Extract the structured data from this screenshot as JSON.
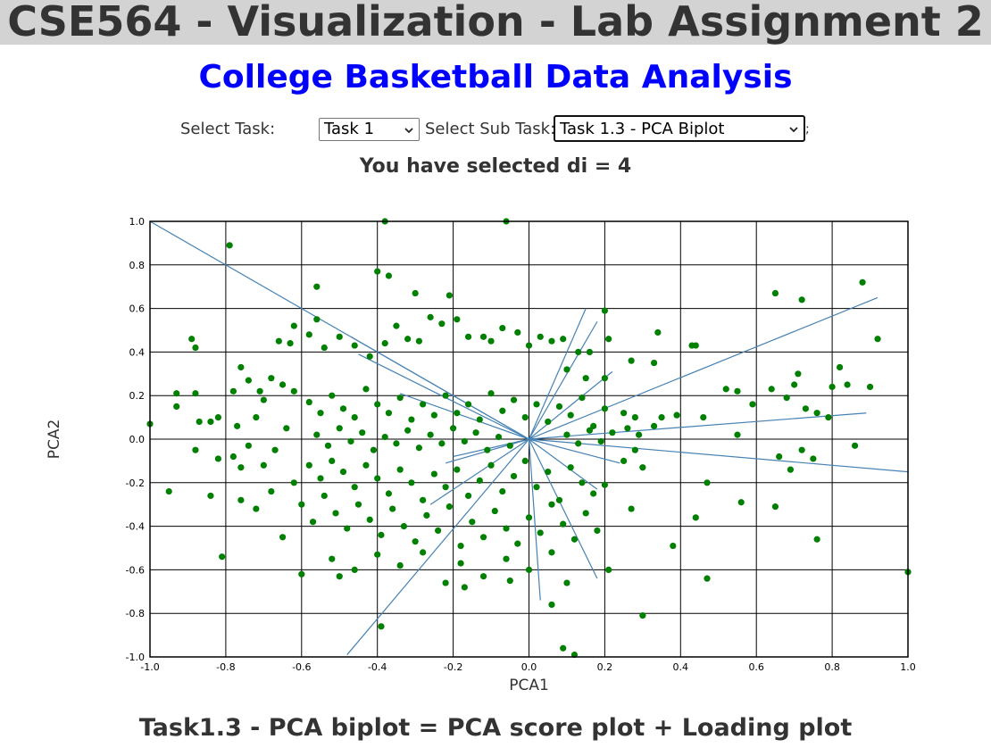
{
  "header": {
    "title": "CSE564 - Visualization - Lab Assignment 2",
    "subtitle": "College Basketball Data Analysis"
  },
  "controls": {
    "task_label": "Select Task:",
    "task_value": "Task 1",
    "subtask_label": "Select Sub Task:",
    "subtask_value": "Task 1.3 - PCA Biplot",
    "trailing": ";"
  },
  "status": {
    "selected_text": "You have selected di = 4"
  },
  "caption": "Task1.3 - PCA biplot = PCA score plot + Loading plot",
  "colors": {
    "point": "#008000",
    "loading": "#4682b4",
    "subtitle": "#0000ff",
    "banner": "#d3d3d3"
  },
  "chart_data": {
    "type": "scatter",
    "xlabel": "PCA1",
    "ylabel": "PCA2",
    "xlim": [
      -1.0,
      1.0
    ],
    "ylim": [
      -1.0,
      1.0
    ],
    "grid": true,
    "x_ticks": [
      "-1.0",
      "-0.8",
      "-0.6",
      "-0.4",
      "-0.2",
      "0.0",
      "0.2",
      "0.4",
      "0.6",
      "0.8",
      "1.0"
    ],
    "y_ticks": [
      "-1.0",
      "-0.8",
      "-0.6",
      "-0.4",
      "-0.2",
      "0.0",
      "0.2",
      "0.4",
      "0.6",
      "0.8",
      "1.0"
    ],
    "loadings": [
      [
        -1.0,
        1.0
      ],
      [
        -0.47,
        0.47
      ],
      [
        -0.45,
        0.39
      ],
      [
        -0.34,
        0.21
      ],
      [
        0.15,
        0.6
      ],
      [
        0.18,
        0.54
      ],
      [
        0.22,
        0.31
      ],
      [
        0.92,
        0.65
      ],
      [
        0.89,
        0.12
      ],
      [
        1.0,
        -0.15
      ],
      [
        0.24,
        -0.11
      ],
      [
        0.18,
        -0.23
      ],
      [
        0.18,
        -0.64
      ],
      [
        0.03,
        -0.74
      ],
      [
        -0.48,
        -0.99
      ],
      [
        -0.26,
        -0.3
      ],
      [
        -0.22,
        -0.11
      ],
      [
        -0.2,
        -0.08
      ]
    ],
    "points": [
      [
        -0.38,
        1.0
      ],
      [
        -0.06,
        1.0
      ],
      [
        -0.79,
        0.89
      ],
      [
        0.88,
        0.72
      ],
      [
        0.65,
        0.67
      ],
      [
        0.72,
        0.64
      ],
      [
        -0.56,
        0.7
      ],
      [
        -0.4,
        0.77
      ],
      [
        -0.37,
        0.75
      ],
      [
        -0.3,
        0.67
      ],
      [
        -0.21,
        0.66
      ],
      [
        0.2,
        0.59
      ],
      [
        0.34,
        0.49
      ],
      [
        0.44,
        0.43
      ],
      [
        0.92,
        0.46
      ],
      [
        -0.89,
        0.46
      ],
      [
        -0.88,
        0.42
      ],
      [
        -0.93,
        0.21
      ],
      [
        -0.88,
        0.21
      ],
      [
        -0.93,
        0.15
      ],
      [
        -0.87,
        0.08
      ],
      [
        -0.84,
        0.08
      ],
      [
        -0.82,
        0.1
      ],
      [
        -0.88,
        -0.05
      ],
      [
        -0.82,
        -0.09
      ],
      [
        -0.78,
        -0.08
      ],
      [
        -0.76,
        -0.13
      ],
      [
        -0.77,
        0.06
      ],
      [
        -0.78,
        0.22
      ],
      [
        -0.76,
        0.33
      ],
      [
        -0.74,
        0.27
      ],
      [
        -0.71,
        0.22
      ],
      [
        -0.68,
        0.28
      ],
      [
        -0.65,
        0.25
      ],
      [
        -0.62,
        0.22
      ],
      [
        -0.66,
        0.45
      ],
      [
        -0.63,
        0.44
      ],
      [
        -0.62,
        0.52
      ],
      [
        -0.58,
        0.48
      ],
      [
        -0.56,
        0.55
      ],
      [
        -0.54,
        0.42
      ],
      [
        -0.5,
        0.47
      ],
      [
        -0.46,
        0.43
      ],
      [
        -0.42,
        0.38
      ],
      [
        -0.38,
        0.44
      ],
      [
        -0.35,
        0.52
      ],
      [
        -0.32,
        0.46
      ],
      [
        -0.29,
        0.45
      ],
      [
        -0.26,
        0.56
      ],
      [
        -0.23,
        0.53
      ],
      [
        -0.19,
        0.55
      ],
      [
        -0.16,
        0.47
      ],
      [
        -0.12,
        0.47
      ],
      [
        -0.1,
        0.45
      ],
      [
        -0.07,
        0.51
      ],
      [
        -0.03,
        0.49
      ],
      [
        0.0,
        0.43
      ],
      [
        0.03,
        0.47
      ],
      [
        0.06,
        0.45
      ],
      [
        0.09,
        0.46
      ],
      [
        0.13,
        0.4
      ],
      [
        0.16,
        0.4
      ],
      [
        0.21,
        0.46
      ],
      [
        -0.58,
        0.17
      ],
      [
        -0.55,
        0.12
      ],
      [
        -0.52,
        0.2
      ],
      [
        -0.49,
        0.14
      ],
      [
        -0.46,
        0.1
      ],
      [
        -0.43,
        0.23
      ],
      [
        -0.4,
        0.16
      ],
      [
        -0.37,
        0.12
      ],
      [
        -0.34,
        0.19
      ],
      [
        -0.31,
        0.09
      ],
      [
        -0.28,
        0.16
      ],
      [
        -0.25,
        0.11
      ],
      [
        -0.22,
        0.2
      ],
      [
        -0.19,
        0.12
      ],
      [
        -0.16,
        0.16
      ],
      [
        -0.13,
        0.09
      ],
      [
        -0.1,
        0.21
      ],
      [
        -0.07,
        0.13
      ],
      [
        -0.04,
        0.18
      ],
      [
        -0.01,
        0.1
      ],
      [
        0.02,
        0.16
      ],
      [
        0.05,
        0.08
      ],
      [
        0.08,
        0.15
      ],
      [
        0.11,
        0.11
      ],
      [
        0.14,
        0.19
      ],
      [
        0.17,
        0.06
      ],
      [
        0.2,
        0.14
      ],
      [
        -0.56,
        0.02
      ],
      [
        -0.53,
        -0.03
      ],
      [
        -0.5,
        0.05
      ],
      [
        -0.47,
        -0.01
      ],
      [
        -0.44,
        0.03
      ],
      [
        -0.41,
        -0.05
      ],
      [
        -0.38,
        0.01
      ],
      [
        -0.35,
        -0.02
      ],
      [
        -0.32,
        0.04
      ],
      [
        -0.29,
        -0.04
      ],
      [
        -0.26,
        0.02
      ],
      [
        -0.23,
        -0.02
      ],
      [
        -0.2,
        0.05
      ],
      [
        -0.17,
        -0.01
      ],
      [
        -0.14,
        0.03
      ],
      [
        -0.11,
        -0.05
      ],
      [
        -0.08,
        0.01
      ],
      [
        -0.05,
        -0.03
      ],
      [
        0.1,
        0.02
      ],
      [
        0.13,
        -0.02
      ],
      [
        0.16,
        0.04
      ],
      [
        0.19,
        -0.01
      ],
      [
        0.22,
        0.03
      ],
      [
        0.26,
        0.05
      ],
      [
        0.29,
        0.02
      ],
      [
        0.33,
        0.06
      ],
      [
        0.35,
        0.1
      ],
      [
        0.28,
        0.1
      ],
      [
        0.25,
        0.12
      ],
      [
        -0.58,
        -0.12
      ],
      [
        -0.55,
        -0.18
      ],
      [
        -0.52,
        -0.1
      ],
      [
        -0.49,
        -0.15
      ],
      [
        -0.46,
        -0.22
      ],
      [
        -0.43,
        -0.12
      ],
      [
        -0.4,
        -0.18
      ],
      [
        -0.37,
        -0.25
      ],
      [
        -0.34,
        -0.14
      ],
      [
        -0.31,
        -0.2
      ],
      [
        -0.28,
        -0.28
      ],
      [
        -0.25,
        -0.16
      ],
      [
        -0.22,
        -0.22
      ],
      [
        -0.19,
        -0.14
      ],
      [
        -0.16,
        -0.26
      ],
      [
        -0.13,
        -0.19
      ],
      [
        -0.1,
        -0.12
      ],
      [
        -0.07,
        -0.24
      ],
      [
        -0.04,
        -0.17
      ],
      [
        -0.01,
        -0.1
      ],
      [
        0.02,
        -0.22
      ],
      [
        0.05,
        -0.15
      ],
      [
        0.08,
        -0.28
      ],
      [
        0.11,
        -0.13
      ],
      [
        0.14,
        -0.2
      ],
      [
        0.17,
        -0.25
      ],
      [
        0.2,
        -0.21
      ],
      [
        0.25,
        -0.1
      ],
      [
        0.28,
        -0.05
      ],
      [
        0.3,
        -0.13
      ],
      [
        -0.6,
        -0.3
      ],
      [
        -0.57,
        -0.38
      ],
      [
        -0.54,
        -0.26
      ],
      [
        -0.51,
        -0.34
      ],
      [
        -0.48,
        -0.41
      ],
      [
        -0.45,
        -0.3
      ],
      [
        -0.42,
        -0.37
      ],
      [
        -0.39,
        -0.44
      ],
      [
        -0.36,
        -0.32
      ],
      [
        -0.33,
        -0.4
      ],
      [
        -0.3,
        -0.47
      ],
      [
        -0.27,
        -0.35
      ],
      [
        -0.24,
        -0.42
      ],
      [
        -0.21,
        -0.31
      ],
      [
        -0.18,
        -0.49
      ],
      [
        -0.15,
        -0.38
      ],
      [
        -0.12,
        -0.45
      ],
      [
        -0.09,
        -0.33
      ],
      [
        -0.06,
        -0.41
      ],
      [
        -0.03,
        -0.48
      ],
      [
        0.0,
        -0.36
      ],
      [
        0.03,
        -0.43
      ],
      [
        0.06,
        -0.3
      ],
      [
        0.09,
        -0.39
      ],
      [
        0.12,
        -0.46
      ],
      [
        0.15,
        -0.34
      ],
      [
        0.18,
        -0.42
      ],
      [
        -0.52,
        -0.55
      ],
      [
        -0.46,
        -0.6
      ],
      [
        -0.4,
        -0.53
      ],
      [
        -0.34,
        -0.58
      ],
      [
        -0.28,
        -0.52
      ],
      [
        -0.22,
        -0.66
      ],
      [
        -0.18,
        -0.57
      ],
      [
        -0.12,
        -0.63
      ],
      [
        -0.06,
        -0.55
      ],
      [
        0.0,
        -0.6
      ],
      [
        0.06,
        -0.52
      ],
      [
        -0.17,
        -0.68
      ],
      [
        -0.05,
        -0.65
      ],
      [
        0.1,
        -0.66
      ],
      [
        0.21,
        -0.6
      ],
      [
        -0.39,
        -0.86
      ],
      [
        0.09,
        -0.96
      ],
      [
        0.12,
        -0.99
      ],
      [
        0.06,
        -0.76
      ],
      [
        0.3,
        -0.81
      ],
      [
        0.47,
        -0.64
      ],
      [
        0.38,
        -0.49
      ],
      [
        0.44,
        -0.36
      ],
      [
        0.27,
        -0.32
      ],
      [
        0.47,
        -0.2
      ],
      [
        -0.95,
        -0.24
      ],
      [
        -0.84,
        -0.26
      ],
      [
        -0.81,
        -0.54
      ],
      [
        -0.65,
        -0.45
      ],
      [
        -0.6,
        -0.62
      ],
      [
        -0.5,
        -0.63
      ],
      [
        0.56,
        -0.29
      ],
      [
        0.65,
        -0.31
      ],
      [
        0.76,
        -0.46
      ],
      [
        1.0,
        -0.61
      ],
      [
        0.66,
        -0.08
      ],
      [
        0.69,
        -0.14
      ],
      [
        0.75,
        -0.09
      ],
      [
        0.86,
        -0.03
      ],
      [
        0.72,
        -0.05
      ],
      [
        -1.0,
        0.07
      ],
      [
        0.52,
        0.23
      ],
      [
        0.55,
        0.22
      ],
      [
        0.59,
        0.16
      ],
      [
        0.64,
        0.23
      ],
      [
        0.68,
        0.19
      ],
      [
        0.7,
        0.25
      ],
      [
        0.71,
        0.3
      ],
      [
        0.73,
        0.14
      ],
      [
        0.76,
        0.12
      ],
      [
        0.79,
        0.1
      ],
      [
        0.8,
        0.24
      ],
      [
        0.82,
        0.33
      ],
      [
        0.84,
        0.25
      ],
      [
        0.9,
        0.24
      ],
      [
        0.55,
        0.02
      ],
      [
        0.46,
        0.1
      ],
      [
        0.39,
        0.11
      ],
      [
        0.43,
        0.43
      ],
      [
        0.33,
        0.35
      ],
      [
        0.27,
        0.36
      ],
      [
        0.2,
        0.28
      ],
      [
        0.15,
        0.28
      ],
      [
        0.1,
        0.32
      ],
      [
        -0.7,
        0.18
      ],
      [
        -0.72,
        0.1
      ],
      [
        -0.74,
        -0.03
      ],
      [
        -0.7,
        -0.12
      ],
      [
        -0.67,
        -0.05
      ],
      [
        -0.64,
        0.05
      ],
      [
        -0.62,
        -0.2
      ],
      [
        -0.68,
        -0.24
      ],
      [
        -0.72,
        -0.32
      ],
      [
        -0.76,
        -0.28
      ]
    ]
  }
}
